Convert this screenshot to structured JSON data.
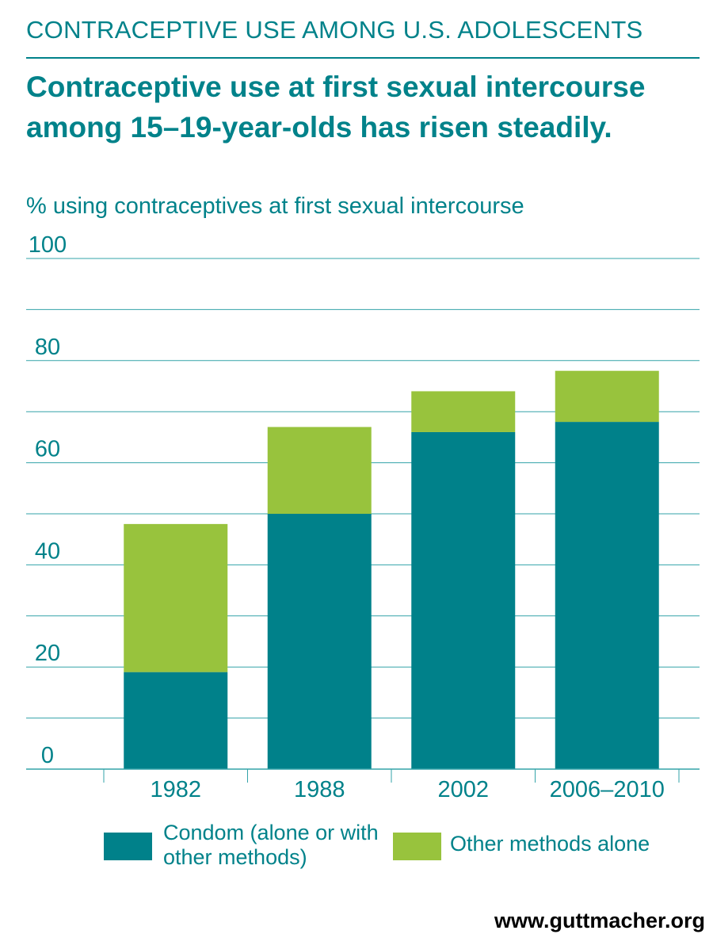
{
  "header": {
    "kicker": "CONTRACEPTIVE USE AMONG U.S. ADOLESCENTS",
    "title": "Contraceptive use at first sexual intercourse among 15–19-year-olds has risen steadily."
  },
  "footer": {
    "url": "www.guttmacher.org"
  },
  "colors": {
    "accent": "#00828a",
    "condom": "#00818a",
    "other": "#98c33d",
    "grid": "#33a3a9"
  },
  "chart_data": {
    "type": "bar",
    "stacked": true,
    "ylabel": "% using contraceptives at first sexual intercourse",
    "ylim": [
      0,
      100
    ],
    "yticks": [
      0,
      20,
      40,
      60,
      80,
      100
    ],
    "grid_step": 10,
    "categories": [
      "1982",
      "1988",
      "2002",
      "2006–2010"
    ],
    "series": [
      {
        "name": "Condom (alone or with other methods)",
        "values": [
          19,
          50,
          66,
          68
        ],
        "color": "#00818a"
      },
      {
        "name": "Other methods alone",
        "values": [
          29,
          17,
          8,
          10
        ],
        "color": "#98c33d"
      }
    ],
    "legend": "bottom"
  }
}
